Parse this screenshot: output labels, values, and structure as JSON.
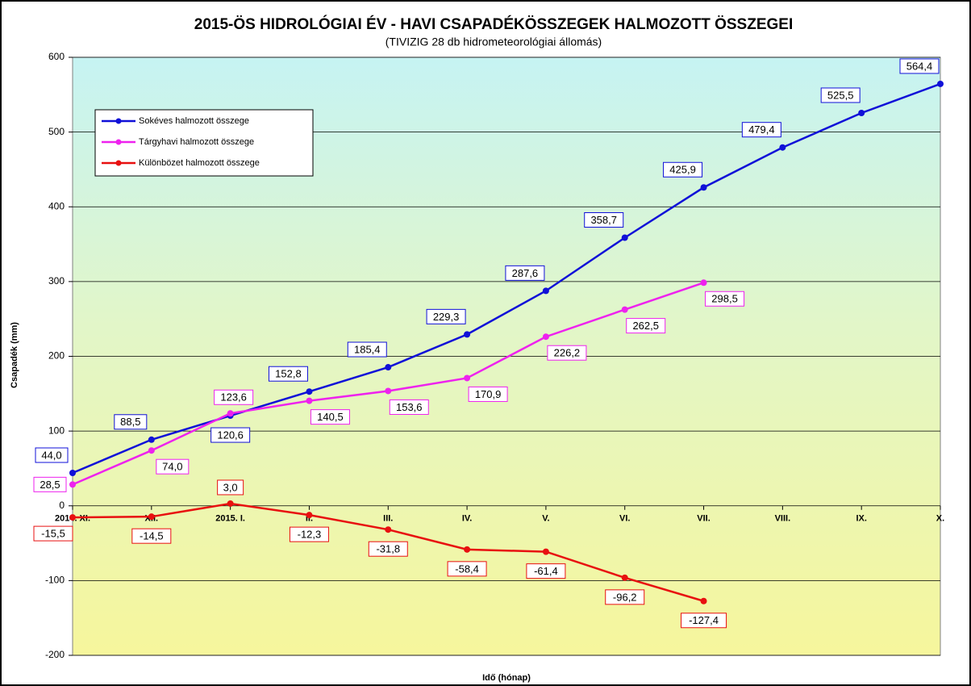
{
  "chart_data": {
    "type": "line",
    "title": "2015-ÖS HIDROLÓGIAI ÉV - HAVI CSAPADÉKÖSSZEGEK HALMOZOTT ÖSSZEGEI",
    "subtitle": "(TIVIZIG 28 db hidrometeorológiai állomás)",
    "y_label": "Csapadék (mm)",
    "x_label": "Idő (hónap)",
    "categories": [
      "2014. XI.",
      "XII.",
      "2015. I.",
      "II.",
      "III.",
      "IV.",
      "V.",
      "VI.",
      "VII.",
      "VIII.",
      "IX.",
      "X."
    ],
    "series": [
      {
        "name": "Sokéves halmozott összege",
        "color": "#1010d8",
        "values": [
          44.0,
          88.5,
          120.6,
          152.8,
          185.4,
          229.3,
          287.6,
          358.7,
          425.9,
          479.4,
          525.5,
          564.4
        ],
        "value_labels": [
          "44,0",
          "88,5",
          "120,6",
          "152,8",
          "185,4",
          "229,3",
          "287,6",
          "358,7",
          "425,9",
          "479,4",
          "525,5",
          "564,4"
        ]
      },
      {
        "name": "Tárgyhavi halmozott összege",
        "color": "#ee22ee",
        "values": [
          28.5,
          74.0,
          123.6,
          140.5,
          153.6,
          170.9,
          226.2,
          262.5,
          298.5,
          null,
          null,
          null
        ],
        "value_labels": [
          "28,5",
          "74,0",
          "123,6",
          "140,5",
          "153,6",
          "170,9",
          "226,2",
          "262,5",
          "298,5",
          null,
          null,
          null
        ]
      },
      {
        "name": "Különbözet halmozott összege",
        "color": "#e81010",
        "values": [
          -15.5,
          -14.5,
          3.0,
          -12.3,
          -31.8,
          -58.4,
          -61.4,
          -96.2,
          -127.4,
          null,
          null,
          null
        ],
        "value_labels": [
          "-15,5",
          "-14,5",
          "3,0",
          "-12,3",
          "-31,8",
          "-58,4",
          "-61,4",
          "-96,2",
          "-127,4",
          null,
          null,
          null
        ]
      }
    ],
    "ylim": [
      -200,
      600
    ],
    "yticks": [
      -200,
      -100,
      0,
      100,
      200,
      300,
      400,
      500,
      600
    ],
    "grid": true,
    "legend": "upper left"
  }
}
